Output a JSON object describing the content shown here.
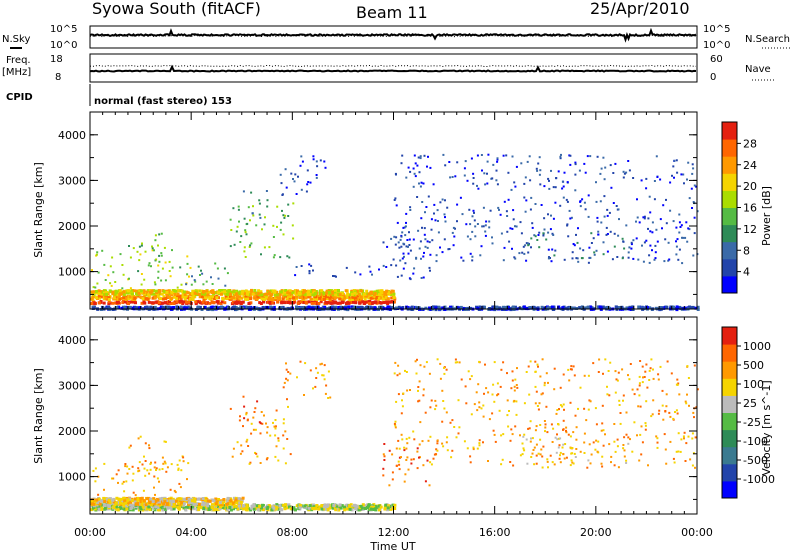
{
  "header": {
    "station": "Syowa South (fitACF)",
    "beam": "Beam 11",
    "date": "25/Apr/2010"
  },
  "panels": {
    "nsky_label": "N.Sky",
    "nsky_ticks": [
      "10^5",
      "10^0"
    ],
    "nsearch_label": "N.Search",
    "nsearch_ticks": [
      "10^5",
      "10^0"
    ],
    "freq_label": "Freq.",
    "freq_unit": "[MHz]",
    "freq_ticks": [
      "18",
      "8"
    ],
    "nave_label": "Nave",
    "nave_ticks": [
      "60",
      "0"
    ],
    "cpid_label": "CPID",
    "cpid_value": "normal (fast stereo) 153"
  },
  "chart_data": [
    {
      "type": "heatmap",
      "title": "",
      "xlabel": "Time UT",
      "ylabel": "Slant Range [km]",
      "xlim": [
        0,
        24
      ],
      "ylim": [
        180,
        4500
      ],
      "x_ticks": [
        "00:00",
        "04:00",
        "08:00",
        "12:00",
        "16:00",
        "20:00",
        "00:00"
      ],
      "y_ticks": [
        1000,
        2000,
        3000,
        4000
      ],
      "colorbar": {
        "label": "Power [dB]",
        "ticks": [
          "4",
          "8",
          "12",
          "16",
          "20",
          "24",
          "28"
        ],
        "colors": [
          "#0000ff",
          "#2244aa",
          "#3a6aa8",
          "#2e8b57",
          "#55bb44",
          "#aadd00",
          "#f5d400",
          "#ff9900",
          "#ff6600",
          "#e42010"
        ]
      },
      "regions": [
        {
          "t": [
            0.0,
            12.0
          ],
          "r": [
            330,
            380
          ],
          "level": 9
        },
        {
          "t": [
            0.0,
            12.0
          ],
          "r": [
            420,
            500
          ],
          "level": 7
        },
        {
          "t": [
            0.0,
            12.0
          ],
          "r": [
            520,
            620
          ],
          "level": 6
        },
        {
          "t": [
            0.0,
            4.0
          ],
          "r": [
            650,
            1500
          ],
          "level": 5
        },
        {
          "t": [
            1.5,
            3.0
          ],
          "r": [
            1000,
            1900
          ],
          "level": 4
        },
        {
          "t": [
            3.5,
            5.5
          ],
          "r": [
            700,
            1300
          ],
          "level": 3
        },
        {
          "t": [
            5.5,
            8.0
          ],
          "r": [
            1300,
            2600
          ],
          "level": 4
        },
        {
          "t": [
            6.0,
            7.0
          ],
          "r": [
            2000,
            2800
          ],
          "level": 3
        },
        {
          "t": [
            7.5,
            9.5
          ],
          "r": [
            2700,
            3600
          ],
          "level": 1
        },
        {
          "t": [
            8.0,
            11.5
          ],
          "r": [
            900,
            1200
          ],
          "level": 1
        },
        {
          "t": [
            11.5,
            13.5
          ],
          "r": [
            800,
            1800
          ],
          "level": 1
        },
        {
          "t": [
            12.0,
            24.0
          ],
          "r": [
            1200,
            2700
          ],
          "level": 1
        },
        {
          "t": [
            12.0,
            24.0
          ],
          "r": [
            2800,
            3600
          ],
          "level": 1
        },
        {
          "t": [
            17.0,
            21.5
          ],
          "r": [
            1300,
            1900
          ],
          "level": 2
        },
        {
          "t": [
            0.0,
            24.0
          ],
          "r": [
            200,
            260
          ],
          "level": 1
        }
      ]
    },
    {
      "type": "heatmap",
      "title": "",
      "xlabel": "Time UT",
      "ylabel": "Slant Range [km]",
      "xlim": [
        0,
        24
      ],
      "ylim": [
        180,
        4500
      ],
      "x_ticks": [
        "00:00",
        "04:00",
        "08:00",
        "12:00",
        "16:00",
        "20:00",
        "00:00"
      ],
      "y_ticks": [
        1000,
        2000,
        3000,
        4000
      ],
      "colorbar": {
        "label": "Velocity [m s^-1]",
        "ticks": [
          "1000",
          "500",
          "100",
          "25",
          "-25",
          "-100",
          "-500",
          "-1000"
        ],
        "colors": [
          "#0000ff",
          "#2244aa",
          "#3a7a90",
          "#2e8b57",
          "#55bb44",
          "#bbbbbb",
          "#f5d400",
          "#ff9900",
          "#ff6600",
          "#e42010"
        ]
      },
      "regions": [
        {
          "t": [
            0.0,
            12.0
          ],
          "r": [
            300,
            420
          ],
          "level": 5
        },
        {
          "t": [
            0.0,
            6.0
          ],
          "r": [
            420,
            560
          ],
          "level": 6
        },
        {
          "t": [
            0.0,
            4.0
          ],
          "r": [
            600,
            1500
          ],
          "level": 7
        },
        {
          "t": [
            1.5,
            3.0
          ],
          "r": [
            1000,
            1900
          ],
          "level": 7
        },
        {
          "t": [
            5.5,
            8.0
          ],
          "r": [
            1300,
            2600
          ],
          "level": 7
        },
        {
          "t": [
            6.0,
            7.0
          ],
          "r": [
            2000,
            2800
          ],
          "level": 8
        },
        {
          "t": [
            7.5,
            9.5
          ],
          "r": [
            2700,
            3600
          ],
          "level": 7
        },
        {
          "t": [
            11.5,
            13.5
          ],
          "r": [
            800,
            1800
          ],
          "level": 8
        },
        {
          "t": [
            12.0,
            24.0
          ],
          "r": [
            1200,
            2700
          ],
          "level": 7
        },
        {
          "t": [
            12.0,
            24.0
          ],
          "r": [
            2800,
            3600
          ],
          "level": 7
        },
        {
          "t": [
            17.0,
            21.5
          ],
          "r": [
            1300,
            1900
          ],
          "level": 6
        }
      ]
    }
  ]
}
